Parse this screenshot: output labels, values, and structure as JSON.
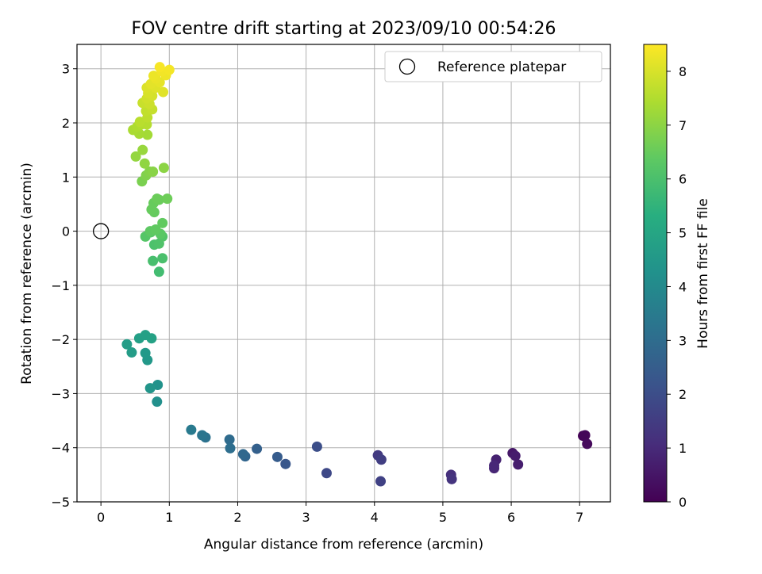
{
  "chart_data": {
    "type": "scatter",
    "title": "FOV centre drift starting at 2023/09/10 00:54:26",
    "xlabel": "Angular distance from reference (arcmin)",
    "ylabel": "Rotation from reference (arcmin)",
    "xlim": [
      -0.35,
      7.45
    ],
    "ylim": [
      -5.0,
      3.45
    ],
    "xticks": [
      0,
      1,
      2,
      3,
      4,
      5,
      6,
      7
    ],
    "yticks": [
      -5,
      -4,
      -3,
      -2,
      -1,
      0,
      1,
      2,
      3
    ],
    "grid": true,
    "legend": {
      "label": "Reference platepar",
      "position": "top-right"
    },
    "reference_point": {
      "x": 0,
      "y": 0
    },
    "colorbar": {
      "label": "Hours from first FF file",
      "colormap": "viridis",
      "min": 0,
      "max": 8.5,
      "ticks": [
        0,
        1,
        2,
        3,
        4,
        5,
        6,
        7,
        8
      ]
    },
    "points": [
      {
        "x": 7.05,
        "y": -3.78,
        "c": 0.05
      },
      {
        "x": 7.08,
        "y": -3.77,
        "c": 0.12
      },
      {
        "x": 7.11,
        "y": -3.93,
        "c": 0.2
      },
      {
        "x": 6.02,
        "y": -4.1,
        "c": 0.55
      },
      {
        "x": 6.06,
        "y": -4.15,
        "c": 0.65
      },
      {
        "x": 6.1,
        "y": -4.31,
        "c": 0.7
      },
      {
        "x": 5.78,
        "y": -4.22,
        "c": 0.8
      },
      {
        "x": 5.75,
        "y": -4.38,
        "c": 0.9
      },
      {
        "x": 5.75,
        "y": -4.33,
        "c": 0.95
      },
      {
        "x": 5.12,
        "y": -4.5,
        "c": 1.15
      },
      {
        "x": 5.13,
        "y": -4.58,
        "c": 1.25
      },
      {
        "x": 4.05,
        "y": -4.14,
        "c": 1.45
      },
      {
        "x": 4.1,
        "y": -4.22,
        "c": 1.55
      },
      {
        "x": 4.09,
        "y": -4.62,
        "c": 1.65
      },
      {
        "x": 3.3,
        "y": -4.47,
        "c": 1.85
      },
      {
        "x": 3.16,
        "y": -3.98,
        "c": 2.0
      },
      {
        "x": 2.7,
        "y": -4.3,
        "c": 2.3
      },
      {
        "x": 2.58,
        "y": -4.17,
        "c": 2.45
      },
      {
        "x": 2.28,
        "y": -4.02,
        "c": 2.6
      },
      {
        "x": 2.11,
        "y": -4.16,
        "c": 2.75
      },
      {
        "x": 2.08,
        "y": -4.12,
        "c": 2.85
      },
      {
        "x": 1.88,
        "y": -3.85,
        "c": 2.95
      },
      {
        "x": 1.89,
        "y": -4.01,
        "c": 3.05
      },
      {
        "x": 1.53,
        "y": -3.81,
        "c": 3.2
      },
      {
        "x": 1.48,
        "y": -3.77,
        "c": 3.3
      },
      {
        "x": 1.32,
        "y": -3.67,
        "c": 3.45
      },
      {
        "x": 0.82,
        "y": -3.15,
        "c": 4.2
      },
      {
        "x": 0.83,
        "y": -2.84,
        "c": 4.3
      },
      {
        "x": 0.72,
        "y": -2.9,
        "c": 4.4
      },
      {
        "x": 0.68,
        "y": -2.38,
        "c": 4.5
      },
      {
        "x": 0.65,
        "y": -2.25,
        "c": 4.55
      },
      {
        "x": 0.45,
        "y": -2.24,
        "c": 4.65
      },
      {
        "x": 0.38,
        "y": -2.09,
        "c": 4.7
      },
      {
        "x": 0.56,
        "y": -1.98,
        "c": 4.75
      },
      {
        "x": 0.65,
        "y": -1.92,
        "c": 4.8
      },
      {
        "x": 0.74,
        "y": -1.98,
        "c": 4.85
      },
      {
        "x": 0.85,
        "y": -0.75,
        "c": 5.85
      },
      {
        "x": 0.76,
        "y": -0.55,
        "c": 5.95
      },
      {
        "x": 0.9,
        "y": -0.5,
        "c": 6.0
      },
      {
        "x": 0.78,
        "y": -0.25,
        "c": 6.05
      },
      {
        "x": 0.85,
        "y": -0.23,
        "c": 6.1
      },
      {
        "x": 0.9,
        "y": -0.1,
        "c": 6.15
      },
      {
        "x": 0.65,
        "y": -0.1,
        "c": 6.2
      },
      {
        "x": 0.73,
        "y": -0.02,
        "c": 6.25
      },
      {
        "x": 0.87,
        "y": -0.05,
        "c": 6.3
      },
      {
        "x": 0.72,
        "y": 0.0,
        "c": 6.35
      },
      {
        "x": 0.8,
        "y": 0.03,
        "c": 6.4
      },
      {
        "x": 0.9,
        "y": 0.15,
        "c": 6.42
      },
      {
        "x": 0.78,
        "y": 0.35,
        "c": 6.45
      },
      {
        "x": 0.74,
        "y": 0.4,
        "c": 6.48
      },
      {
        "x": 0.77,
        "y": 0.52,
        "c": 6.5
      },
      {
        "x": 0.85,
        "y": 0.58,
        "c": 6.52
      },
      {
        "x": 0.82,
        "y": 0.6,
        "c": 6.55
      },
      {
        "x": 0.97,
        "y": 0.6,
        "c": 6.58
      },
      {
        "x": 0.6,
        "y": 0.92,
        "c": 6.75
      },
      {
        "x": 0.66,
        "y": 1.03,
        "c": 6.85
      },
      {
        "x": 0.71,
        "y": 1.1,
        "c": 6.9
      },
      {
        "x": 0.76,
        "y": 1.1,
        "c": 6.95
      },
      {
        "x": 0.92,
        "y": 1.17,
        "c": 7.0
      },
      {
        "x": 0.64,
        "y": 1.25,
        "c": 7.05
      },
      {
        "x": 0.51,
        "y": 1.38,
        "c": 7.1
      },
      {
        "x": 0.61,
        "y": 1.5,
        "c": 7.15
      },
      {
        "x": 0.68,
        "y": 1.78,
        "c": 7.3
      },
      {
        "x": 0.56,
        "y": 1.8,
        "c": 7.35
      },
      {
        "x": 0.47,
        "y": 1.87,
        "c": 7.4
      },
      {
        "x": 0.53,
        "y": 1.93,
        "c": 7.45
      },
      {
        "x": 0.59,
        "y": 1.97,
        "c": 7.5
      },
      {
        "x": 0.67,
        "y": 1.97,
        "c": 7.55
      },
      {
        "x": 0.57,
        "y": 2.02,
        "c": 7.6
      },
      {
        "x": 0.68,
        "y": 2.1,
        "c": 7.65
      },
      {
        "x": 0.66,
        "y": 2.22,
        "c": 7.7
      },
      {
        "x": 0.75,
        "y": 2.25,
        "c": 7.75
      },
      {
        "x": 0.61,
        "y": 2.37,
        "c": 7.8
      },
      {
        "x": 0.71,
        "y": 2.35,
        "c": 7.85
      },
      {
        "x": 0.67,
        "y": 2.45,
        "c": 7.9
      },
      {
        "x": 0.75,
        "y": 2.5,
        "c": 7.95
      },
      {
        "x": 0.69,
        "y": 2.55,
        "c": 8.0
      },
      {
        "x": 0.67,
        "y": 2.65,
        "c": 8.05
      },
      {
        "x": 0.8,
        "y": 2.65,
        "c": 8.1
      },
      {
        "x": 0.91,
        "y": 2.57,
        "c": 8.12
      },
      {
        "x": 0.73,
        "y": 2.72,
        "c": 8.15
      },
      {
        "x": 0.86,
        "y": 2.75,
        "c": 8.2
      },
      {
        "x": 0.8,
        "y": 2.82,
        "c": 8.25
      },
      {
        "x": 0.77,
        "y": 2.87,
        "c": 8.28
      },
      {
        "x": 0.95,
        "y": 2.88,
        "c": 8.3
      },
      {
        "x": 0.89,
        "y": 2.95,
        "c": 8.35
      },
      {
        "x": 1.0,
        "y": 2.98,
        "c": 8.38
      },
      {
        "x": 0.86,
        "y": 3.03,
        "c": 8.42
      }
    ]
  }
}
